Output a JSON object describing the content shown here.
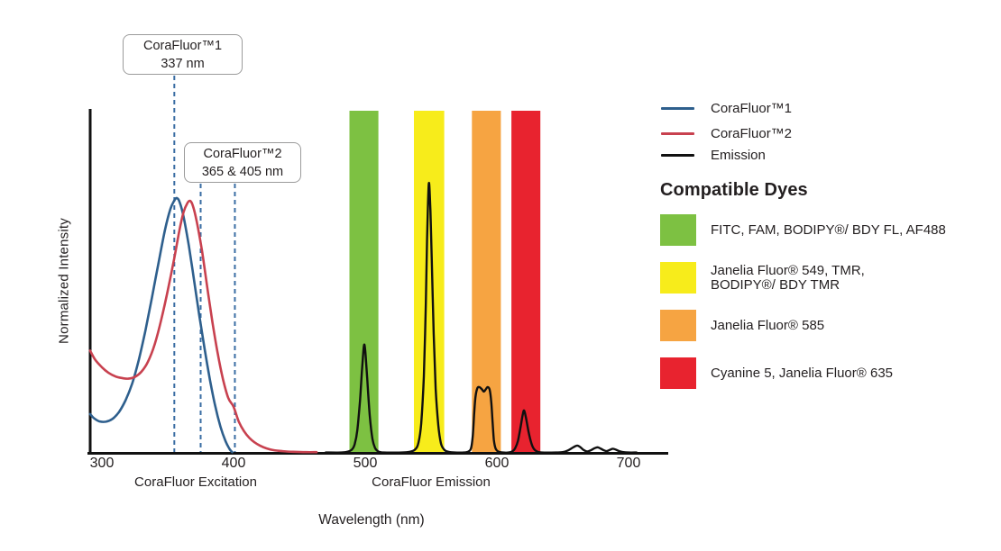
{
  "figure": {
    "y_axis_label": "Normalized Intensity",
    "x_axis_title": "Wavelength (nm)",
    "excitation_group_label": "CoraFluor Excitation",
    "emission_group_label": "CoraFluor Emission"
  },
  "annotations": [
    {
      "title": "CoraFluor™1",
      "value": "337 nm"
    },
    {
      "title": "CoraFluor™2",
      "value": "365 & 405 nm"
    }
  ],
  "legend": {
    "series": [
      {
        "label": "CoraFluor™1"
      },
      {
        "label": "CoraFluor™2"
      },
      {
        "label": "Emission"
      }
    ],
    "dyes_heading": "Compatible Dyes"
  },
  "chart_data": {
    "type": "line",
    "title": "",
    "xlabel": "Wavelength (nm)",
    "ylabel": "Normalized Intensity",
    "xlim": [
      291,
      730
    ],
    "ylim": [
      0,
      1
    ],
    "x_ticks": [
      300,
      400,
      500,
      600,
      700
    ],
    "grid": false,
    "legend_position": "right",
    "dashed_lines": {
      "color": "#3a6da3",
      "drawn_at": [
        355,
        375,
        401
      ]
    },
    "bands": [
      {
        "id": "green",
        "color": "#7dc142",
        "from": 488,
        "to": 510,
        "dyes": "FITC, FAM, BODIPY®/ BDY FL, AF488"
      },
      {
        "id": "yellow",
        "color": "#f7ec1b",
        "from": 537,
        "to": 560,
        "dyes": "Janelia Fluor® 549, TMR,\nBODIPY®/ BDY TMR"
      },
      {
        "id": "orange",
        "color": "#f6a442",
        "from": 581,
        "to": 603,
        "dyes": "Janelia Fluor® 585"
      },
      {
        "id": "red",
        "color": "#e8232f",
        "from": 611,
        "to": 633,
        "dyes": "Cyanine 5, Janelia Fluor® 635"
      }
    ],
    "series": [
      {
        "id": "corafluor1-excitation",
        "name": "CoraFluor™1",
        "color": "#2e5f8d",
        "width": 2.6,
        "points": [
          [
            291,
            0.112
          ],
          [
            294,
            0.1
          ],
          [
            298,
            0.091
          ],
          [
            303,
            0.09
          ],
          [
            308,
            0.098
          ],
          [
            313,
            0.118
          ],
          [
            318,
            0.152
          ],
          [
            323,
            0.2
          ],
          [
            328,
            0.268
          ],
          [
            333,
            0.352
          ],
          [
            338,
            0.448
          ],
          [
            343,
            0.548
          ],
          [
            348,
            0.645
          ],
          [
            352,
            0.703
          ],
          [
            355,
            0.728
          ],
          [
            357,
            0.735
          ],
          [
            359,
            0.724
          ],
          [
            362,
            0.682
          ],
          [
            366,
            0.598
          ],
          [
            370,
            0.498
          ],
          [
            374,
            0.396
          ],
          [
            378,
            0.3
          ],
          [
            382,
            0.212
          ],
          [
            386,
            0.136
          ],
          [
            390,
            0.076
          ],
          [
            394,
            0.033
          ],
          [
            397,
            0.011
          ],
          [
            399,
            0.002
          ]
        ]
      },
      {
        "id": "corafluor2-excitation",
        "name": "CoraFluor™2",
        "color": "#c8414f",
        "width": 2.6,
        "points": [
          [
            291,
            0.295
          ],
          [
            295,
            0.268
          ],
          [
            300,
            0.247
          ],
          [
            305,
            0.231
          ],
          [
            310,
            0.221
          ],
          [
            315,
            0.216
          ],
          [
            320,
            0.214
          ],
          [
            325,
            0.219
          ],
          [
            330,
            0.234
          ],
          [
            335,
            0.263
          ],
          [
            340,
            0.312
          ],
          [
            345,
            0.383
          ],
          [
            350,
            0.468
          ],
          [
            355,
            0.562
          ],
          [
            359,
            0.644
          ],
          [
            362,
            0.694
          ],
          [
            365,
            0.721
          ],
          [
            367,
            0.727
          ],
          [
            369,
            0.714
          ],
          [
            372,
            0.668
          ],
          [
            376,
            0.583
          ],
          [
            380,
            0.478
          ],
          [
            384,
            0.376
          ],
          [
            388,
            0.286
          ],
          [
            392,
            0.212
          ],
          [
            396,
            0.158
          ],
          [
            400,
            0.133
          ],
          [
            404,
            0.09
          ],
          [
            408,
            0.062
          ],
          [
            412,
            0.043
          ],
          [
            416,
            0.03
          ],
          [
            420,
            0.021
          ],
          [
            425,
            0.013
          ],
          [
            430,
            0.008
          ],
          [
            437,
            0.005
          ],
          [
            445,
            0.003
          ],
          [
            455,
            0.002
          ],
          [
            463,
            0.002
          ]
        ]
      },
      {
        "id": "emission",
        "name": "Emission",
        "color": "#101010",
        "width": 2.4,
        "points": [
          [
            470,
            0.001
          ],
          [
            482,
            0.001
          ],
          [
            487,
            0.004
          ],
          [
            490,
            0.01
          ],
          [
            492,
            0.025
          ],
          [
            494,
            0.065
          ],
          [
            496,
            0.15
          ],
          [
            497.5,
            0.235
          ],
          [
            499,
            0.308
          ],
          [
            500,
            0.295
          ],
          [
            501.5,
            0.215
          ],
          [
            503.5,
            0.105
          ],
          [
            505.5,
            0.04
          ],
          [
            507.5,
            0.014
          ],
          [
            510,
            0.004
          ],
          [
            514,
            0.001
          ],
          [
            528,
            0.001
          ],
          [
            534,
            0.003
          ],
          [
            538,
            0.01
          ],
          [
            540.5,
            0.03
          ],
          [
            542.5,
            0.085
          ],
          [
            544.5,
            0.22
          ],
          [
            546,
            0.43
          ],
          [
            547,
            0.62
          ],
          [
            548.3,
            0.777
          ],
          [
            549.5,
            0.7
          ],
          [
            550.5,
            0.565
          ],
          [
            552,
            0.345
          ],
          [
            553.5,
            0.185
          ],
          [
            555.5,
            0.08
          ],
          [
            557.5,
            0.028
          ],
          [
            560,
            0.009
          ],
          [
            563,
            0.003
          ],
          [
            568,
            0.001
          ],
          [
            575,
            0.001
          ],
          [
            578.5,
            0.004
          ],
          [
            580.5,
            0.015
          ],
          [
            581.7,
            0.05
          ],
          [
            582.7,
            0.11
          ],
          [
            583.7,
            0.16
          ],
          [
            585,
            0.185
          ],
          [
            586.5,
            0.19
          ],
          [
            588.5,
            0.184
          ],
          [
            590,
            0.177
          ],
          [
            591.5,
            0.183
          ],
          [
            593,
            0.19
          ],
          [
            594.5,
            0.182
          ],
          [
            595.7,
            0.148
          ],
          [
            596.7,
            0.09
          ],
          [
            597.7,
            0.038
          ],
          [
            599,
            0.013
          ],
          [
            601,
            0.004
          ],
          [
            604.5,
            0.001
          ],
          [
            609,
            0.001
          ],
          [
            612,
            0.005
          ],
          [
            614,
            0.014
          ],
          [
            616,
            0.035
          ],
          [
            618,
            0.075
          ],
          [
            619.7,
            0.112
          ],
          [
            620.7,
            0.122
          ],
          [
            622,
            0.103
          ],
          [
            624,
            0.062
          ],
          [
            626,
            0.03
          ],
          [
            628,
            0.012
          ],
          [
            630.5,
            0.004
          ],
          [
            634,
            0.001
          ],
          [
            645,
            0.001
          ],
          [
            650,
            0.002
          ],
          [
            654,
            0.007
          ],
          [
            658,
            0.016
          ],
          [
            661,
            0.021
          ],
          [
            663.5,
            0.016
          ],
          [
            666,
            0.008
          ],
          [
            668.5,
            0.004
          ],
          [
            671,
            0.007
          ],
          [
            674,
            0.013
          ],
          [
            676.5,
            0.016
          ],
          [
            679,
            0.012
          ],
          [
            681.5,
            0.007
          ],
          [
            683.5,
            0.005
          ],
          [
            685.5,
            0.008
          ],
          [
            688,
            0.012
          ],
          [
            690.5,
            0.009
          ],
          [
            693,
            0.005
          ],
          [
            696,
            0.002
          ],
          [
            700,
            0.001
          ],
          [
            706,
            0.001
          ]
        ]
      }
    ]
  }
}
